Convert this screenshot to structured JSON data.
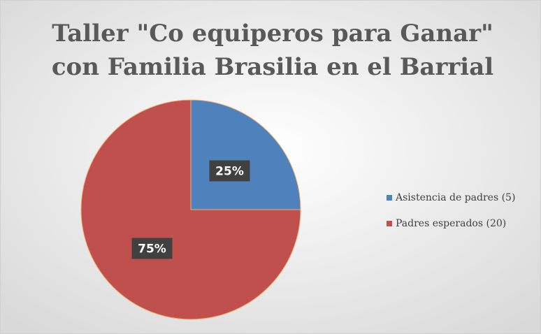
{
  "chart_data": {
    "type": "pie",
    "title": [
      "Taller \"Co equiperos para Ganar\"",
      "con Familia Brasilia en el Barrial"
    ],
    "categories": [
      "Asistencia de padres (5)",
      "Padres esperados (20)"
    ],
    "values": [
      25,
      75
    ],
    "value_labels": [
      "25%",
      "75%"
    ],
    "colors": [
      "#4f81bd",
      "#c0504d"
    ],
    "legend": "right"
  }
}
